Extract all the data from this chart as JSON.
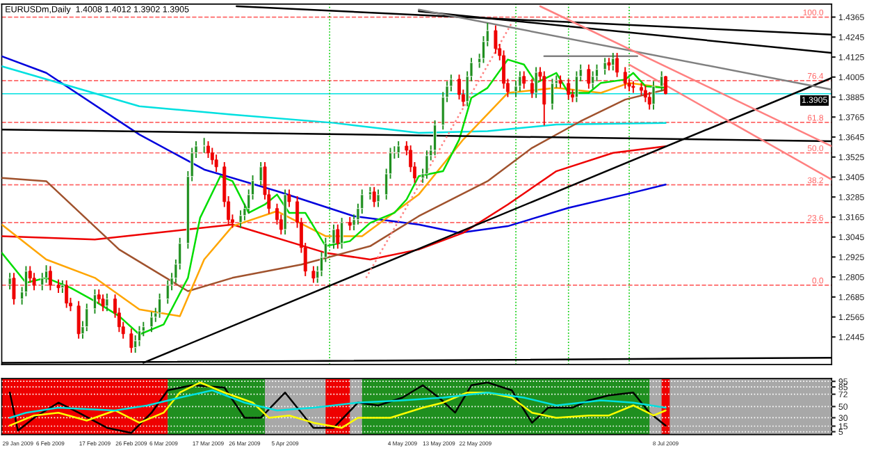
{
  "chart_data": [
    {
      "type": "candlestick",
      "title": "EURUSDm,Daily  1.4008 1.4012 1.3902 1.3905",
      "tick_labels": "y",
      "xlim": [
        "2009-01-25",
        "2009-08-18"
      ],
      "ylim": [
        1.228,
        1.4443
      ],
      "yticks": [
        1.4365,
        1.4245,
        1.4125,
        1.4005,
        1.3885,
        1.3765,
        1.3645,
        1.3525,
        1.3405,
        1.3285,
        1.3165,
        1.3045,
        1.2925,
        1.2805,
        1.2685,
        1.2565,
        1.2445
      ],
      "x": [
        "2009-01-27",
        "2009-01-28",
        "2009-01-30",
        "2009-01-31",
        "2009-02-01",
        "2009-02-02",
        "2009-02-04",
        "2009-02-05",
        "2009-02-06",
        "2009-02-08",
        "2009-02-09",
        "2009-02-10",
        "2009-02-11",
        "2009-02-13",
        "2009-02-14",
        "2009-02-15",
        "2009-02-17",
        "2009-02-18",
        "2009-02-19",
        "2009-02-20",
        "2009-02-22",
        "2009-02-23",
        "2009-02-24",
        "2009-02-26",
        "2009-02-27",
        "2009-02-28",
        "2009-03-01",
        "2009-03-03",
        "2009-03-04",
        "2009-03-05",
        "2009-03-07",
        "2009-03-08",
        "2009-03-09",
        "2009-03-10",
        "2009-03-12",
        "2009-03-13",
        "2009-03-14",
        "2009-03-16",
        "2009-03-17",
        "2009-03-18",
        "2009-03-19",
        "2009-03-21",
        "2009-03-22",
        "2009-03-23",
        "2009-03-25",
        "2009-03-26",
        "2009-03-27",
        "2009-03-28",
        "2009-03-30",
        "2009-03-31",
        "2009-04-01",
        "2009-04-03",
        "2009-04-04",
        "2009-04-05",
        "2009-04-06",
        "2009-04-08",
        "2009-04-09",
        "2009-04-10",
        "2009-04-12",
        "2009-04-13",
        "2009-04-14",
        "2009-04-15",
        "2009-04-17",
        "2009-04-18",
        "2009-04-19",
        "2009-04-21",
        "2009-04-22",
        "2009-04-23",
        "2009-04-24",
        "2009-04-26",
        "2009-04-27",
        "2009-04-28",
        "2009-04-30",
        "2009-05-01",
        "2009-05-02",
        "2009-05-03",
        "2009-05-05",
        "2009-05-06",
        "2009-05-07",
        "2009-05-09",
        "2009-05-10",
        "2009-05-11",
        "2009-05-12",
        "2009-05-14",
        "2009-05-15",
        "2009-05-16",
        "2009-05-18",
        "2009-05-19",
        "2009-05-20",
        "2009-05-21",
        "2009-05-23",
        "2009-05-24",
        "2009-05-25",
        "2009-05-27",
        "2009-05-28",
        "2009-05-29",
        "2009-05-30",
        "2009-06-01",
        "2009-06-02",
        "2009-06-03",
        "2009-06-05",
        "2009-06-06",
        "2009-06-07",
        "2009-06-08",
        "2009-06-10",
        "2009-06-11",
        "2009-06-12",
        "2009-06-14",
        "2009-06-15",
        "2009-06-16",
        "2009-06-17",
        "2009-06-19",
        "2009-06-20",
        "2009-06-21",
        "2009-06-23",
        "2009-06-24",
        "2009-06-25",
        "2009-06-26",
        "2009-06-28",
        "2009-06-29",
        "2009-06-30",
        "2009-07-02",
        "2009-07-03",
        "2009-07-04",
        "2009-07-05",
        "2009-07-07",
        "2009-07-08"
      ],
      "ohlc": [
        [
          1.276,
          1.283,
          1.273,
          1.2798
        ],
        [
          1.2798,
          1.283,
          1.264,
          1.2673
        ],
        [
          1.2673,
          1.2745,
          1.264,
          1.2715
        ],
        [
          1.2715,
          1.287,
          1.269,
          1.284
        ],
        [
          1.284,
          1.287,
          1.277,
          1.2798
        ],
        [
          1.2798,
          1.283,
          1.2725,
          1.2756
        ],
        [
          1.2756,
          1.283,
          1.2725,
          1.2798
        ],
        [
          1.2798,
          1.2875,
          1.277,
          1.284
        ],
        [
          1.284,
          1.287,
          1.2725,
          1.2756
        ],
        [
          1.2756,
          1.279,
          1.271,
          1.274
        ],
        [
          1.274,
          1.2785,
          1.271,
          1.2756
        ],
        [
          1.2756,
          1.2785,
          1.262,
          1.2648
        ],
        [
          1.2648,
          1.268,
          1.26,
          1.2631
        ],
        [
          1.2631,
          1.266,
          1.2435,
          1.2464
        ],
        [
          1.2464,
          1.254,
          1.2435,
          1.2506
        ],
        [
          1.2506,
          1.2645,
          1.248,
          1.2614
        ],
        [
          1.2614,
          1.273,
          1.2585,
          1.2698
        ],
        [
          1.2698,
          1.273,
          1.2645,
          1.2673
        ],
        [
          1.2673,
          1.27,
          1.26,
          1.2631
        ],
        [
          1.2631,
          1.2705,
          1.26,
          1.2673
        ],
        [
          1.2673,
          1.27,
          1.256,
          1.2589
        ],
        [
          1.2589,
          1.262,
          1.2475,
          1.2506
        ],
        [
          1.2506,
          1.2535,
          1.2435,
          1.2464
        ],
        [
          1.2464,
          1.2495,
          1.235,
          1.2381
        ],
        [
          1.2381,
          1.2455,
          1.235,
          1.2422
        ],
        [
          1.2422,
          1.251,
          1.239,
          1.2481
        ],
        [
          1.2481,
          1.2535,
          1.245,
          1.2506
        ],
        [
          1.2506,
          1.2595,
          1.2475,
          1.2564
        ],
        [
          1.2564,
          1.262,
          1.2535,
          1.2589
        ],
        [
          1.2589,
          1.2705,
          1.256,
          1.2673
        ],
        [
          1.2673,
          1.2785,
          1.2645,
          1.2756
        ],
        [
          1.2756,
          1.283,
          1.2725,
          1.2798
        ],
        [
          1.2798,
          1.291,
          1.277,
          1.2882
        ],
        [
          1.2882,
          1.304,
          1.285,
          1.3007
        ],
        [
          1.3007,
          1.344,
          1.2975,
          1.3408
        ],
        [
          1.3408,
          1.358,
          1.338,
          1.355
        ],
        [
          1.355,
          1.362,
          1.352,
          1.3591
        ],
        [
          1.3591,
          1.364,
          1.355,
          1.3591
        ],
        [
          1.3591,
          1.362,
          1.352,
          1.355
        ],
        [
          1.355,
          1.358,
          1.348,
          1.3508
        ],
        [
          1.3508,
          1.354,
          1.3435,
          1.3466
        ],
        [
          1.3466,
          1.3495,
          1.3225,
          1.3257
        ],
        [
          1.3257,
          1.329,
          1.312,
          1.3149
        ],
        [
          1.3149,
          1.318,
          1.31,
          1.3132
        ],
        [
          1.3132,
          1.3205,
          1.31,
          1.3174
        ],
        [
          1.3174,
          1.3245,
          1.3145,
          1.3216
        ],
        [
          1.3216,
          1.333,
          1.3185,
          1.3299
        ],
        [
          1.3299,
          1.3415,
          1.327,
          1.3383
        ],
        [
          1.3383,
          1.3495,
          1.3355,
          1.3466
        ],
        [
          1.3466,
          1.3495,
          1.327,
          1.3299
        ],
        [
          1.3299,
          1.333,
          1.3185,
          1.3216
        ],
        [
          1.3216,
          1.3245,
          1.312,
          1.3149
        ],
        [
          1.3149,
          1.318,
          1.306,
          1.309
        ],
        [
          1.309,
          1.333,
          1.306,
          1.3299
        ],
        [
          1.3299,
          1.333,
          1.3225,
          1.3257
        ],
        [
          1.3257,
          1.329,
          1.31,
          1.3132
        ],
        [
          1.3132,
          1.316,
          1.295,
          1.2982
        ],
        [
          1.2982,
          1.301,
          1.281,
          1.284
        ],
        [
          1.284,
          1.287,
          1.277,
          1.2798
        ],
        [
          1.2798,
          1.287,
          1.277,
          1.284
        ],
        [
          1.284,
          1.2955,
          1.281,
          1.2923
        ],
        [
          1.2923,
          1.304,
          1.2895,
          1.3007
        ],
        [
          1.3007,
          1.312,
          1.2975,
          1.309
        ],
        [
          1.309,
          1.312,
          1.2975,
          1.3007
        ],
        [
          1.3007,
          1.316,
          1.2975,
          1.3132
        ],
        [
          1.3132,
          1.3165,
          1.3085,
          1.3115
        ],
        [
          1.3115,
          1.318,
          1.3085,
          1.3149
        ],
        [
          1.3149,
          1.3245,
          1.312,
          1.3216
        ],
        [
          1.3216,
          1.333,
          1.3185,
          1.3299
        ],
        [
          1.3299,
          1.3345,
          1.327,
          1.3316
        ],
        [
          1.3316,
          1.3345,
          1.3225,
          1.3257
        ],
        [
          1.3257,
          1.333,
          1.3225,
          1.3299
        ],
        [
          1.3299,
          1.3455,
          1.327,
          1.3424
        ],
        [
          1.3424,
          1.358,
          1.3395,
          1.355
        ],
        [
          1.355,
          1.359,
          1.3515,
          1.355
        ],
        [
          1.355,
          1.362,
          1.352,
          1.3591
        ],
        [
          1.3591,
          1.362,
          1.3535,
          1.3566
        ],
        [
          1.3566,
          1.3595,
          1.3435,
          1.3466
        ],
        [
          1.3466,
          1.3495,
          1.337,
          1.3399
        ],
        [
          1.3399,
          1.3455,
          1.337,
          1.3424
        ],
        [
          1.3424,
          1.3565,
          1.3395,
          1.3533
        ],
        [
          1.3533,
          1.3595,
          1.3505,
          1.3566
        ],
        [
          1.3566,
          1.3745,
          1.3535,
          1.3717
        ],
        [
          1.3717,
          1.3915,
          1.369,
          1.3884
        ],
        [
          1.3884,
          1.398,
          1.3855,
          1.395
        ],
        [
          1.395,
          1.402,
          1.392,
          1.3992
        ],
        [
          1.3992,
          1.402,
          1.387,
          1.39
        ],
        [
          1.39,
          1.393,
          1.383,
          1.3858
        ],
        [
          1.3858,
          1.404,
          1.383,
          1.4009
        ],
        [
          1.4009,
          1.412,
          1.398,
          1.4092
        ],
        [
          1.4092,
          1.4145,
          1.406,
          1.4117
        ],
        [
          1.4117,
          1.425,
          1.409,
          1.4218
        ],
        [
          1.4218,
          1.433,
          1.419,
          1.4284
        ],
        [
          1.4284,
          1.4315,
          1.4145,
          1.4176
        ],
        [
          1.4176,
          1.4205,
          1.4105,
          1.4134
        ],
        [
          1.4134,
          1.4165,
          1.3935,
          1.3967
        ],
        [
          1.3967,
          1.3995,
          1.3885,
          1.3917
        ],
        [
          1.3917,
          1.398,
          1.3885,
          1.395
        ],
        [
          1.395,
          1.404,
          1.392,
          1.4009
        ],
        [
          1.4009,
          1.404,
          1.3935,
          1.3967
        ],
        [
          1.3967,
          1.3995,
          1.388,
          1.3909
        ],
        [
          1.3909,
          1.4065,
          1.388,
          1.4034
        ],
        [
          1.4034,
          1.4065,
          1.398,
          1.4009
        ],
        [
          1.4009,
          1.404,
          1.3715,
          1.3842
        ],
        [
          1.3842,
          1.3995,
          1.381,
          1.3967
        ],
        [
          1.3967,
          1.4015,
          1.394,
          1.3984
        ],
        [
          1.3984,
          1.4015,
          1.394,
          1.3967
        ],
        [
          1.3967,
          1.3995,
          1.387,
          1.39
        ],
        [
          1.39,
          1.393,
          1.3855,
          1.3884
        ],
        [
          1.3884,
          1.404,
          1.3855,
          1.4009
        ],
        [
          1.4009,
          1.408,
          1.398,
          1.4051
        ],
        [
          1.4051,
          1.408,
          1.3935,
          1.3967
        ],
        [
          1.3967,
          1.404,
          1.3935,
          1.4009
        ],
        [
          1.4009,
          1.408,
          1.398,
          1.4051
        ],
        [
          1.4051,
          1.412,
          1.402,
          1.4092
        ],
        [
          1.4092,
          1.412,
          1.4045,
          1.4076
        ],
        [
          1.4076,
          1.415,
          1.4045,
          1.4117
        ],
        [
          1.4117,
          1.415,
          1.4005,
          1.4034
        ],
        [
          1.4034,
          1.4065,
          1.3935,
          1.3967
        ],
        [
          1.3967,
          1.3995,
          1.392,
          1.395
        ],
        [
          1.395,
          1.398,
          1.391,
          1.3942
        ],
        [
          1.3942,
          1.397,
          1.3895,
          1.3925
        ],
        [
          1.3925,
          1.3955,
          1.3855,
          1.3884
        ],
        [
          1.3884,
          1.3915,
          1.381,
          1.3842
        ],
        [
          1.3842,
          1.398,
          1.381,
          1.395
        ],
        [
          1.395,
          1.404,
          1.392,
          1.4009
        ],
        [
          1.4008,
          1.4012,
          1.3902,
          1.3905
        ]
      ],
      "series": [
        {
          "type": "line",
          "color": "#0000dd",
          "x": [
            "2009-01-25",
            "2009-02-05",
            "2009-02-28",
            "2009-03-16",
            "2009-04-03",
            "2009-04-22",
            "2009-05-08",
            "2009-05-18",
            "2009-05-30",
            "2009-06-14",
            "2009-06-28",
            "2009-07-08"
          ],
          "values": [
            1.413,
            1.403,
            1.366,
            1.345,
            1.332,
            1.317,
            1.312,
            1.307,
            1.311,
            1.322,
            1.33,
            1.336
          ]
        },
        {
          "type": "line",
          "color": "#00e0e0",
          "x": [
            "2009-01-25",
            "2009-02-28",
            "2009-03-23",
            "2009-04-17",
            "2009-05-08",
            "2009-05-25",
            "2009-06-11",
            "2009-07-08"
          ],
          "values": [
            1.407,
            1.383,
            1.378,
            1.373,
            1.367,
            1.368,
            1.372,
            1.373
          ]
        },
        {
          "type": "line",
          "color": "#ee0000",
          "x": [
            "2009-01-25",
            "2009-02-17",
            "2009-03-23",
            "2009-04-15",
            "2009-04-26",
            "2009-05-08",
            "2009-05-19",
            "2009-05-30",
            "2009-06-11",
            "2009-06-25",
            "2009-07-08"
          ],
          "values": [
            1.305,
            1.303,
            1.312,
            1.295,
            1.291,
            1.297,
            1.307,
            1.324,
            1.344,
            1.355,
            1.359
          ]
        },
        {
          "type": "line",
          "color": "#a0522d",
          "x": [
            "2009-01-25",
            "2009-02-05",
            "2009-02-23",
            "2009-03-12",
            "2009-03-23",
            "2009-04-09",
            "2009-04-26",
            "2009-05-08",
            "2009-05-25",
            "2009-06-05",
            "2009-06-17",
            "2009-06-28",
            "2009-07-08"
          ],
          "values": [
            1.34,
            1.338,
            1.297,
            1.272,
            1.28,
            1.288,
            1.299,
            1.317,
            1.338,
            1.358,
            1.374,
            1.387,
            1.393
          ]
        },
        {
          "type": "line",
          "color": "#ffa500",
          "x": [
            "2009-01-25",
            "2009-02-05",
            "2009-02-17",
            "2009-02-28",
            "2009-03-10",
            "2009-03-16",
            "2009-03-23",
            "2009-04-03",
            "2009-04-15",
            "2009-04-24",
            "2009-05-08",
            "2009-05-19",
            "2009-05-30",
            "2009-06-11",
            "2009-06-22",
            "2009-06-29",
            "2009-07-08"
          ],
          "values": [
            1.312,
            1.291,
            1.28,
            1.261,
            1.257,
            1.291,
            1.311,
            1.32,
            1.305,
            1.305,
            1.33,
            1.363,
            1.391,
            1.394,
            1.391,
            1.397,
            1.394
          ]
        },
        {
          "type": "line",
          "color": "#00dd00",
          "x": [
            "2009-01-25",
            "2009-01-31",
            "2009-02-05",
            "2009-02-11",
            "2009-02-17",
            "2009-02-23",
            "2009-02-28",
            "2009-03-06",
            "2009-03-12",
            "2009-03-15",
            "2009-03-20",
            "2009-03-23",
            "2009-03-27",
            "2009-03-31",
            "2009-04-03",
            "2009-04-06",
            "2009-04-10",
            "2009-04-15",
            "2009-04-21",
            "2009-04-26",
            "2009-05-02",
            "2009-05-05",
            "2009-05-08",
            "2009-05-14",
            "2009-05-18",
            "2009-05-21",
            "2009-05-25",
            "2009-05-30",
            "2009-06-03",
            "2009-06-06",
            "2009-06-11",
            "2009-06-14",
            "2009-06-19",
            "2009-06-22",
            "2009-06-28",
            "2009-06-30",
            "2009-07-03",
            "2009-07-08"
          ],
          "values": [
            1.295,
            1.277,
            1.28,
            1.274,
            1.266,
            1.257,
            1.246,
            1.252,
            1.28,
            1.316,
            1.341,
            1.338,
            1.319,
            1.324,
            1.33,
            1.319,
            1.319,
            1.299,
            1.302,
            1.313,
            1.319,
            1.327,
            1.341,
            1.344,
            1.363,
            1.388,
            1.394,
            1.411,
            1.408,
            1.397,
            1.403,
            1.391,
            1.391,
            1.397,
            1.399,
            1.403,
            1.395,
            1.394
          ]
        },
        {
          "type": "line",
          "color": "#000000",
          "x": [
            "2009-03-01",
            "2009-08-18"
          ],
          "values": [
            1.229,
            1.4
          ]
        },
        {
          "type": "line",
          "color": "#000000",
          "x": [
            "2009-05-08",
            "2009-08-18"
          ],
          "values": [
            1.44,
            1.415
          ]
        },
        {
          "type": "line",
          "color": "#000000",
          "x": [
            "2009-03-24",
            "2009-08-18"
          ],
          "values": [
            1.443,
            1.426
          ]
        },
        {
          "type": "line",
          "color": "#808080",
          "x": [
            "2009-05-08",
            "2009-08-18"
          ],
          "values": [
            1.441,
            1.393
          ]
        },
        {
          "type": "line",
          "color": "#000000",
          "x": [
            "2009-01-25",
            "2009-08-18"
          ],
          "values": [
            1.369,
            1.362
          ]
        },
        {
          "type": "line",
          "color": "#000000",
          "x": [
            "2009-01-25",
            "2009-08-18"
          ],
          "values": [
            1.229,
            1.232
          ]
        },
        {
          "type": "line",
          "color": "#808080",
          "x": [
            "2009-06-08",
            "2009-07-01"
          ],
          "values": [
            1.413,
            1.413
          ]
        },
        {
          "type": "line",
          "color": "#ff8080",
          "x": [
            "2009-06-07",
            "2009-08-18"
          ],
          "values": [
            1.443,
            1.359
          ]
        },
        {
          "type": "line",
          "color": "#ff8080",
          "x": [
            "2009-06-29",
            "2009-08-18"
          ],
          "values": [
            1.408,
            1.339
          ]
        },
        {
          "type": "line",
          "color": "#ff8080",
          "line_style": "dotted",
          "x": [
            "2009-04-25",
            "2009-05-31"
          ],
          "values": [
            1.28,
            1.433
          ]
        }
      ],
      "annotations": [
        {
          "text": "100.0",
          "x": "2009-08-16",
          "y": 1.4365
        },
        {
          "text": "76.4",
          "x": "2009-08-16",
          "y": 1.3984
        },
        {
          "text": "61.8",
          "x": "2009-08-16",
          "y": 1.3733
        },
        {
          "text": "50.0",
          "x": "2009-08-16",
          "y": 1.355
        },
        {
          "text": "38.2",
          "x": "2009-08-16",
          "y": 1.3358
        },
        {
          "text": "23.6",
          "x": "2009-08-16",
          "y": 1.3132
        },
        {
          "text": "0.0",
          "x": "2009-08-16",
          "y": 1.2756
        }
      ],
      "ref_lines": [
        {
          "axis": "y",
          "value": 1.4365,
          "color": "#ff6666",
          "line_style": "dashed"
        },
        {
          "axis": "y",
          "value": 1.3984,
          "color": "#ff6666",
          "line_style": "dashed"
        },
        {
          "axis": "y",
          "value": 1.3733,
          "color": "#ff6666",
          "line_style": "dashed"
        },
        {
          "axis": "y",
          "value": 1.355,
          "color": "#ff6666",
          "line_style": "dashed"
        },
        {
          "axis": "y",
          "value": 1.3358,
          "color": "#ff6666",
          "line_style": "dashed"
        },
        {
          "axis": "y",
          "value": 1.3132,
          "color": "#ff6666",
          "line_style": "dashed"
        },
        {
          "axis": "y",
          "value": 1.2756,
          "color": "#ff6666",
          "line_style": "dashed"
        },
        {
          "axis": "y",
          "value": 1.3905,
          "label": "1.3905",
          "color": "#00e0e0",
          "line_style": "solid"
        },
        {
          "axis": "x",
          "value": "2009-04-16",
          "color": "#00cc00",
          "line_style": "dotted"
        },
        {
          "axis": "x",
          "value": "2009-06-01",
          "color": "#00cc00",
          "line_style": "dotted"
        },
        {
          "axis": "x",
          "value": "2009-06-14",
          "color": "#00cc00",
          "line_style": "dotted"
        },
        {
          "axis": "x",
          "value": "2009-06-29",
          "color": "#00cc00",
          "line_style": "dotted"
        }
      ]
    },
    {
      "type": "line",
      "grid": "y",
      "xlim": [
        "2009-01-25",
        "2009-08-18"
      ],
      "ylim": [
        0,
        100
      ],
      "yticks": [
        95,
        85,
        72,
        50,
        30,
        15,
        5
      ],
      "xticks": [
        {
          "value": "2009-01-29",
          "label": "29 Jan 2009"
        },
        {
          "value": "2009-02-06",
          "label": "6 Feb 2009"
        },
        {
          "value": "2009-02-17",
          "label": "17 Feb 2009"
        },
        {
          "value": "2009-02-26",
          "label": "26 Feb 2009"
        },
        {
          "value": "2009-03-06",
          "label": "6 Mar 2009"
        },
        {
          "value": "2009-03-17",
          "label": "17 Mar 2009"
        },
        {
          "value": "2009-03-26",
          "label": "26 Mar 2009"
        },
        {
          "value": "2009-04-05",
          "label": "5 Apr 2009"
        },
        {
          "value": "2009-05-04",
          "label": "4 May 2009"
        },
        {
          "value": "2009-05-13",
          "label": "13 May 2009"
        },
        {
          "value": "2009-05-22",
          "label": "22 May 2009"
        },
        {
          "value": "2009-07-08",
          "label": "8 Jul 2009"
        }
      ],
      "bands": [
        {
          "axis": "x",
          "from": "2009-01-25",
          "to": "2009-03-07",
          "color": "#ee0000"
        },
        {
          "axis": "x",
          "from": "2009-03-07",
          "to": "2009-03-31",
          "color": "#1f8f1f"
        },
        {
          "axis": "x",
          "from": "2009-04-15",
          "to": "2009-04-21",
          "color": "#ee0000"
        },
        {
          "axis": "x",
          "from": "2009-04-24",
          "to": "2009-07-04",
          "color": "#1f8f1f"
        },
        {
          "axis": "x",
          "from": "2009-07-07",
          "to": "2009-07-09",
          "color": "#ee0000"
        }
      ],
      "series": [
        {
          "color": "#000000",
          "x": [
            "2009-01-27",
            "2009-01-29",
            "2009-02-02",
            "2009-02-08",
            "2009-02-13",
            "2009-02-20",
            "2009-02-26",
            "2009-03-03",
            "2009-03-07",
            "2009-03-13",
            "2009-03-21",
            "2009-03-26",
            "2009-03-30",
            "2009-04-05",
            "2009-04-12",
            "2009-04-17",
            "2009-04-23",
            "2009-04-28",
            "2009-05-04",
            "2009-05-09",
            "2009-05-13",
            "2009-05-17",
            "2009-05-21",
            "2009-05-25",
            "2009-05-31",
            "2009-06-05",
            "2009-06-09",
            "2009-06-15",
            "2009-06-19",
            "2009-06-24",
            "2009-06-30",
            "2009-07-04",
            "2009-07-08"
          ],
          "values": [
            75,
            7,
            30,
            57,
            39,
            12,
            3,
            39,
            79,
            88,
            84,
            30,
            30,
            75,
            12,
            12,
            57,
            52,
            66,
            88,
            66,
            39,
            88,
            93,
            79,
            21,
            48,
            48,
            61,
            70,
            75,
            39,
            16
          ]
        },
        {
          "color": "#ffff00",
          "x": [
            "2009-01-27",
            "2009-02-02",
            "2009-02-08",
            "2009-02-15",
            "2009-02-22",
            "2009-02-28",
            "2009-03-06",
            "2009-03-10",
            "2009-03-15",
            "2009-03-21",
            "2009-03-28",
            "2009-04-01",
            "2009-04-06",
            "2009-04-12",
            "2009-04-19",
            "2009-04-23",
            "2009-05-01",
            "2009-05-09",
            "2009-05-14",
            "2009-05-20",
            "2009-05-25",
            "2009-05-31",
            "2009-06-05",
            "2009-06-11",
            "2009-06-19",
            "2009-06-24",
            "2009-06-30",
            "2009-07-05",
            "2009-07-08"
          ],
          "values": [
            16,
            34,
            39,
            25,
            43,
            21,
            39,
            75,
            93,
            75,
            57,
            30,
            34,
            21,
            12,
            30,
            30,
            48,
            57,
            75,
            75,
            66,
            39,
            30,
            34,
            34,
            52,
            34,
            43
          ]
        },
        {
          "color": "#00e0e0",
          "x": [
            "2009-01-27",
            "2009-01-31",
            "2009-02-08",
            "2009-02-22",
            "2009-03-02",
            "2009-03-10",
            "2009-03-18",
            "2009-03-26",
            "2009-04-03",
            "2009-04-12",
            "2009-04-23",
            "2009-05-04",
            "2009-05-14",
            "2009-05-25",
            "2009-06-03",
            "2009-06-11",
            "2009-06-22",
            "2009-06-30",
            "2009-07-08"
          ],
          "values": [
            30,
            39,
            48,
            43,
            52,
            66,
            79,
            57,
            43,
            48,
            57,
            61,
            66,
            75,
            66,
            52,
            61,
            57,
            48
          ]
        }
      ]
    }
  ]
}
